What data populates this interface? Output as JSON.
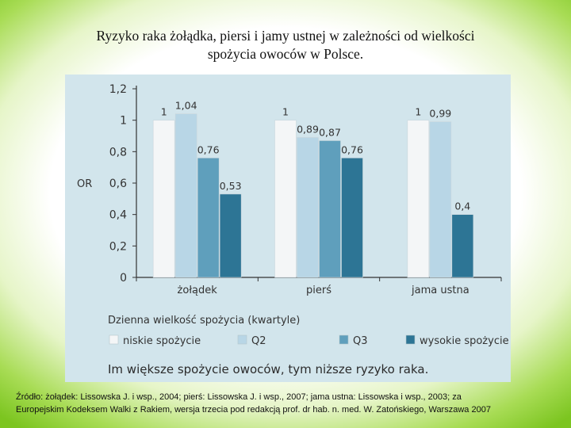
{
  "page": {
    "title_line1": "Ryzyko raka żołądka, piersi i jamy ustnej w zależności od wielkości",
    "title_line2": "spożycia owoców w Polsce.",
    "source_line1": "Źródło: żołądek: Lissowska J. i wsp., 2004; pierś: Lissowska J. i wsp., 2007; jama ustna: Lissowska i wsp., 2003; za",
    "source_line2": "Europejskim Kodeksem Walki z Rakiem, wersja trzecia pod redakcją prof. dr hab. n. med. W. Zatońskiego, Warszawa 2007"
  },
  "colors": {
    "panel_background": "#d2e5ec",
    "axis": "#333333",
    "text": "#333333"
  },
  "chart_data": {
    "type": "bar",
    "ylabel": "OR",
    "ylim": [
      0,
      1.2
    ],
    "yticks": [
      "0",
      "0,2",
      "0,4",
      "0,6",
      "0,8",
      "1",
      "1,2"
    ],
    "ytick_values": [
      0,
      0.2,
      0.4,
      0.6,
      0.8,
      1.0,
      1.2
    ],
    "grid": false,
    "categories": [
      "żołądek",
      "pierś",
      "jama ustna"
    ],
    "series": [
      {
        "name": "niskie spożycie",
        "color": "#f4f6f7",
        "values": [
          1,
          1,
          1
        ],
        "labels": [
          "1",
          "1",
          "1"
        ]
      },
      {
        "name": "Q2",
        "color": "#b8d6e6",
        "values": [
          1.04,
          0.89,
          0.99
        ],
        "labels": [
          "1,04",
          "0,89",
          "0,99"
        ]
      },
      {
        "name": "Q3",
        "color": "#5f9fbc",
        "values": [
          0.76,
          0.87,
          null
        ],
        "labels": [
          "0,76",
          "0,87",
          ""
        ]
      },
      {
        "name": "wysokie spożycie",
        "color": "#2d7595",
        "values": [
          0.53,
          0.76,
          0.4
        ],
        "labels": [
          "0,53",
          "0,76",
          "0,4"
        ]
      }
    ],
    "legend_title": "Dzienna wielkość spożycia (kwartyle)",
    "legend_placement": "bottom",
    "caption": "Im większe spożycie owoców, tym niższe ryzyko raka."
  }
}
